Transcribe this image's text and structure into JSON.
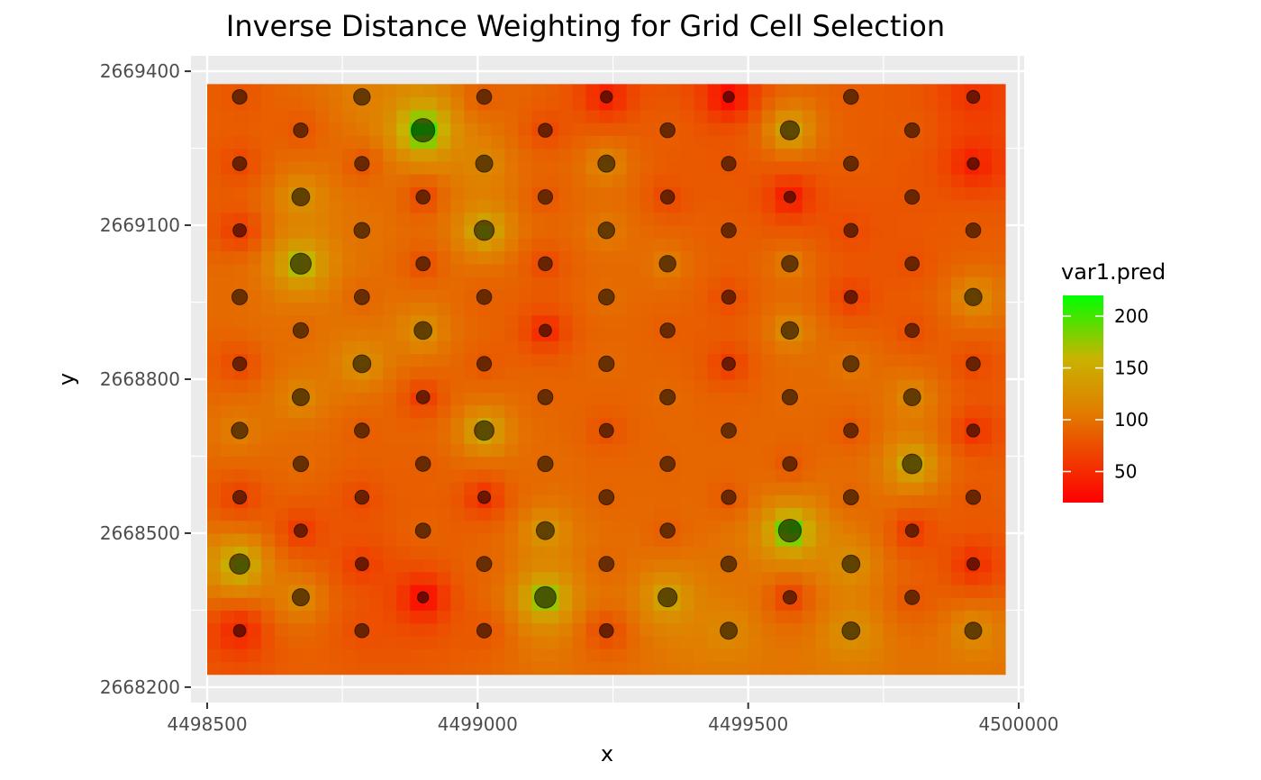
{
  "chart_data": {
    "type": "heatmap",
    "title": "Inverse Distance Weighting for Grid Cell Selection",
    "xlabel": "x",
    "ylabel": "y",
    "xlim": [
      4498470,
      4500010
    ],
    "ylim": [
      2668170,
      2669430
    ],
    "x_ticks": [
      4498500,
      4499000,
      4499500,
      4500000
    ],
    "x_tick_labels": [
      "4498500",
      "4499000",
      "4499500",
      "4500000"
    ],
    "y_ticks": [
      2668200,
      2668500,
      2668800,
      2669100,
      2669400
    ],
    "y_tick_labels": [
      "2668200",
      "2668500",
      "2668800",
      "2669100",
      "2669400"
    ],
    "raster_extent": {
      "x": [
        4498500,
        4499975
      ],
      "y": [
        2668225,
        2669375
      ]
    },
    "raster_cell_size": 25,
    "grid": true,
    "legend": {
      "title": "var1.pred",
      "position": "right",
      "color_low": "#ff0000",
      "color_mid": "#c8b400",
      "color_high": "#00ff00",
      "range": [
        20,
        220
      ],
      "ticks": [
        50,
        100,
        150,
        200
      ],
      "tick_labels": [
        "50",
        "100",
        "150",
        "200"
      ]
    },
    "colors": {
      "panel_background": "#ebebeb",
      "grid_major": "#ffffff",
      "point_fill": "#000000"
    },
    "series": [
      {
        "name": "observations",
        "x": [
          4498560,
          4498786,
          4499012,
          4499238,
          4499464,
          4499690,
          4499916,
          4498673,
          4498899,
          4499125,
          4499351,
          4499577,
          4499803,
          4498560,
          4498786,
          4499012,
          4499238,
          4499464,
          4499690,
          4499916,
          4498673,
          4498899,
          4499125,
          4499351,
          4499577,
          4499803,
          4498560,
          4498786,
          4499012,
          4499238,
          4499464,
          4499690,
          4499916,
          4498673,
          4498899,
          4499125,
          4499351,
          4499577,
          4499803,
          4498560,
          4498786,
          4499012,
          4499238,
          4499464,
          4499690,
          4499916,
          4498673,
          4498899,
          4499125,
          4499351,
          4499577,
          4499803,
          4498560,
          4498786,
          4499012,
          4499238,
          4499464,
          4499690,
          4499916,
          4498673,
          4498899,
          4499125,
          4499351,
          4499577,
          4499803,
          4498560,
          4498786,
          4499012,
          4499238,
          4499464,
          4499690,
          4499916,
          4498673,
          4498899,
          4499125,
          4499351,
          4499577,
          4499803,
          4498560,
          4498786,
          4499012,
          4499238,
          4499464,
          4499690,
          4499916,
          4498673,
          4498899,
          4499125,
          4499351,
          4499577,
          4499803,
          4498560,
          4498786,
          4499012,
          4499238,
          4499464,
          4499690,
          4499916
        ],
        "y": [
          2669350,
          2669350,
          2669350,
          2669350,
          2669350,
          2669350,
          2669350,
          2669285,
          2669285,
          2669285,
          2669285,
          2669285,
          2669285,
          2669220,
          2669220,
          2669220,
          2669220,
          2669220,
          2669220,
          2669220,
          2669155,
          2669155,
          2669155,
          2669155,
          2669155,
          2669155,
          2669090,
          2669090,
          2669090,
          2669090,
          2669090,
          2669090,
          2669090,
          2669025,
          2669025,
          2669025,
          2669025,
          2669025,
          2669025,
          2668960,
          2668960,
          2668960,
          2668960,
          2668960,
          2668960,
          2668960,
          2668895,
          2668895,
          2668895,
          2668895,
          2668895,
          2668895,
          2668830,
          2668830,
          2668830,
          2668830,
          2668830,
          2668830,
          2668830,
          2668765,
          2668765,
          2668765,
          2668765,
          2668765,
          2668765,
          2668700,
          2668700,
          2668700,
          2668700,
          2668700,
          2668700,
          2668700,
          2668635,
          2668635,
          2668635,
          2668635,
          2668635,
          2668635,
          2668570,
          2668570,
          2668570,
          2668570,
          2668570,
          2668570,
          2668570,
          2668505,
          2668505,
          2668505,
          2668505,
          2668505,
          2668505,
          2668440,
          2668440,
          2668440,
          2668440,
          2668440,
          2668440,
          2668440
        ],
        "values": [
          80,
          110,
          85,
          40,
          25,
          85,
          55,
          80,
          220,
          70,
          85,
          150,
          85,
          70,
          80,
          120,
          120,
          80,
          85,
          40,
          130,
          70,
          80,
          70,
          35,
          80,
          60,
          100,
          165,
          110,
          85,
          70,
          85,
          180,
          75,
          70,
          110,
          110,
          75,
          95,
          90,
          85,
          100,
          70,
          60,
          125,
          95,
          130,
          45,
          85,
          125,
          75,
          70,
          130,
          80,
          95,
          60,
          105,
          70,
          120,
          60,
          90,
          95,
          95,
          120,
          110,
          85,
          160,
          75,
          90,
          80,
          55,
          95,
          85,
          95,
          90,
          80,
          160,
          65,
          70,
          50,
          90,
          80,
          90,
          80,
          60,
          90,
          135,
          85,
          210,
          60,
          170,
          60,
          90,
          90,
          100,
          130,
          50
        ]
      },
      {
        "name": "observations-bottom",
        "x": [
          4498673,
          4498899,
          4499125,
          4499351,
          4499577,
          4499803,
          4498560,
          4498786,
          4499012,
          4499238,
          4499464,
          4499690,
          4499916
        ],
        "y": [
          2668375,
          2668375,
          2668375,
          2668375,
          2668375,
          2668375,
          2668310,
          2668310,
          2668310,
          2668310,
          2668310,
          2668310,
          2668310
        ],
        "values": [
          120,
          25,
          190,
          150,
          65,
          80,
          45,
          75,
          80,
          70,
          120,
          130,
          120
        ]
      }
    ]
  }
}
